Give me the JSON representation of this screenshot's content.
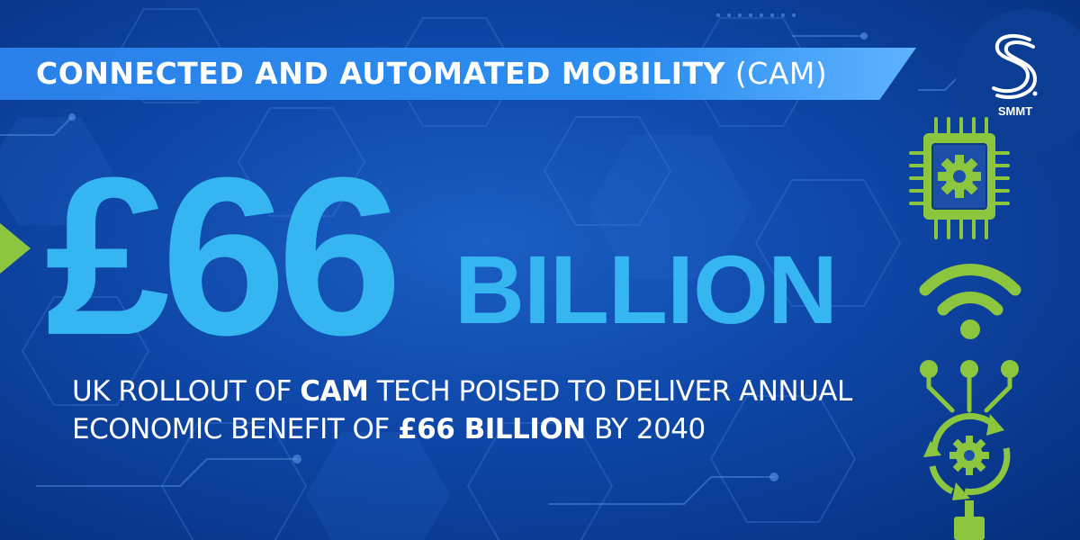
{
  "header": {
    "title_bold": "CONNECTED AND AUTOMATED MOBILITY",
    "title_light": "(CAM)"
  },
  "logo": {
    "text": "SMMT",
    "icon": "smmt-s-logo-icon"
  },
  "headline": {
    "figure": "£66",
    "unit": "BILLION"
  },
  "subtitle": {
    "line1_part1": "UK ROLLOUT OF",
    "line1_bold": "CAM",
    "line1_part2": "TECH POISED TO DELIVER ANNUAL",
    "line2_part1": "ECONOMIC BENEFIT OF",
    "line2_bold": "£66 BILLION",
    "line2_part2": "BY 2040"
  },
  "icons": [
    "chip-gear-icon",
    "wifi-icon",
    "circuit-cycle-gear-icon"
  ],
  "colors": {
    "background": "#0e47a8",
    "banner": "#2b8df0",
    "headline": "#36b6f1",
    "accent_green": "#8cc63f",
    "text": "#ffffff"
  }
}
